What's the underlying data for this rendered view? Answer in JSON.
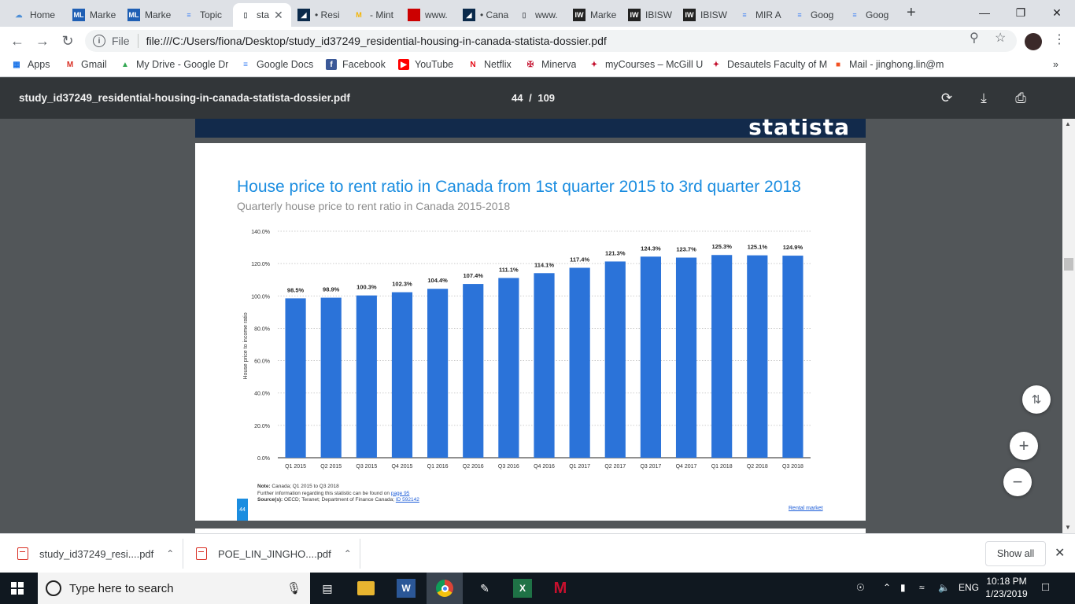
{
  "tabs": [
    {
      "label": "Home",
      "icon": "cloud-icon",
      "color": "#4f8fd6"
    },
    {
      "label": "Marke",
      "icon": "ml-icon",
      "color": "#1f5fb4"
    },
    {
      "label": "Marke",
      "icon": "ml-icon",
      "color": "#1f5fb4"
    },
    {
      "label": "Topic",
      "icon": "docs-icon",
      "color": "#4285f4"
    },
    {
      "label": "sta",
      "icon": "file-icon",
      "color": "#5f6368"
    },
    {
      "label": "• Resi",
      "icon": "statista-icon",
      "color": "#0b2a4b"
    },
    {
      "label": "- Mint",
      "icon": "mint-icon",
      "color": "#f4b400"
    },
    {
      "label": "www.",
      "icon": "red-square-icon",
      "color": "#c00"
    },
    {
      "label": "• Cana",
      "icon": "statista-icon",
      "color": "#0b2a4b"
    },
    {
      "label": "www.",
      "icon": "file-icon",
      "color": "#5f6368"
    },
    {
      "label": "Marke",
      "icon": "iw-icon",
      "color": "#222"
    },
    {
      "label": "IBISW",
      "icon": "iw-icon",
      "color": "#222"
    },
    {
      "label": "IBISW",
      "icon": "iw-icon",
      "color": "#222"
    },
    {
      "label": "MIR A",
      "icon": "docs-icon",
      "color": "#4285f4"
    },
    {
      "label": "Goog",
      "icon": "docs-icon",
      "color": "#4285f4"
    },
    {
      "label": "Goog",
      "icon": "docs-icon",
      "color": "#4285f4"
    }
  ],
  "address": {
    "scheme_label": "File",
    "url": "file:///C:/Users/fiona/Desktop/study_id37249_residential-housing-in-canada-statista-dossier.pdf"
  },
  "bookmarks": [
    {
      "label": "Apps",
      "icon": "apps-grid-icon",
      "color": "#1a73e8"
    },
    {
      "label": "Gmail",
      "icon": "gmail-icon",
      "color": "#d93025"
    },
    {
      "label": "My Drive - Google Dr",
      "icon": "drive-icon",
      "color": "#34a853"
    },
    {
      "label": "Google Docs",
      "icon": "docs-icon",
      "color": "#4285f4"
    },
    {
      "label": "Facebook",
      "icon": "facebook-icon",
      "color": "#3b5998"
    },
    {
      "label": "YouTube",
      "icon": "youtube-icon",
      "color": "#ff0000"
    },
    {
      "label": "Netflix",
      "icon": "netflix-icon",
      "color": "#e50914"
    },
    {
      "label": "Minerva",
      "icon": "mcgill-icon",
      "color": "#c4122f"
    },
    {
      "label": "myCourses – McGill U",
      "icon": "mcgill-bird-icon",
      "color": "#c4122f"
    },
    {
      "label": "Desautels Faculty of M",
      "icon": "mcgill-bird-icon",
      "color": "#c4122f"
    },
    {
      "label": "Mail - jinghong.lin@m",
      "icon": "microsoft-icon",
      "color": "#f25022"
    }
  ],
  "pdf": {
    "filename": "study_id37249_residential-housing-in-canada-statista-dossier.pdf",
    "page_current": "44",
    "page_sep": "/",
    "page_total": "109"
  },
  "page": {
    "brand": "statista",
    "title": "House price to rent ratio in Canada from 1st quarter 2015 to 3rd quarter 2018",
    "subtitle": "Quarterly house price to rent ratio in Canada 2015-2018",
    "note_label": "Note:",
    "note_text": "Canada; Q1 2015 to Q3 2018",
    "further_text": "Further information regarding this statistic can be found on",
    "further_link": "page 95",
    "source_label": "Source(s):",
    "source_text": "OECD; Teranet; Department of Finance Canada;",
    "source_link": "ID 592142",
    "page_number": "44",
    "section_link": "Rental market"
  },
  "chart_data": {
    "type": "bar",
    "title": "House price to rent ratio in Canada from 1st quarter 2015 to 3rd quarter 2018",
    "subtitle": "Quarterly house price to rent ratio in Canada 2015-2018",
    "xlabel": "",
    "ylabel": "House price to income ratio",
    "categories": [
      "Q1 2015",
      "Q2 2015",
      "Q3 2015",
      "Q4 2015",
      "Q1 2016",
      "Q2 2016",
      "Q3 2016",
      "Q4 2016",
      "Q1 2017",
      "Q2 2017",
      "Q3 2017",
      "Q4 2017",
      "Q1 2018",
      "Q2 2018",
      "Q3 2018"
    ],
    "values": [
      98.5,
      98.9,
      100.3,
      102.3,
      104.4,
      107.4,
      111.1,
      114.1,
      117.4,
      121.3,
      124.3,
      123.7,
      125.3,
      125.1,
      124.9
    ],
    "data_labels": [
      "98.5%",
      "98.9%",
      "100.3%",
      "102.3%",
      "104.4%",
      "107.4%",
      "111.1%",
      "114.1%",
      "117.4%",
      "121.3%",
      "124.3%",
      "123.7%",
      "125.3%",
      "125.1%",
      "124.9%"
    ],
    "yticks": [
      0,
      20,
      40,
      60,
      80,
      100,
      120,
      140
    ],
    "ytick_labels": [
      "0.0%",
      "20.0%",
      "40.0%",
      "60.0%",
      "80.0%",
      "100.0%",
      "120.0%",
      "140.0%"
    ],
    "ylim": [
      0,
      140
    ],
    "grid": true,
    "bar_color": "#2b73d9"
  },
  "downloads": [
    {
      "label": "study_id37249_resi....pdf"
    },
    {
      "label": "POE_LIN_JINGHO....pdf"
    }
  ],
  "downloads_show_all": "Show all",
  "taskbar": {
    "search_placeholder": "Type here to search",
    "language": "ENG",
    "time": "10:18 PM",
    "date": "1/23/2019"
  }
}
